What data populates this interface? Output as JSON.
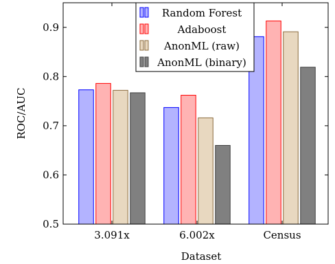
{
  "chart_data": {
    "type": "bar",
    "title": "",
    "xlabel": "Dataset",
    "ylabel": "ROC/AUC",
    "ylim": [
      0.5,
      0.95
    ],
    "yticks": [
      "0.5",
      "0.6",
      "0.7",
      "0.8",
      "0.9"
    ],
    "categories": [
      "3.091x",
      "6.002x",
      "Census"
    ],
    "series": [
      {
        "name": "Random Forest",
        "values": [
          0.773,
          0.737,
          0.881
        ],
        "color": "#b3b3ff",
        "stroke": "#0000ff"
      },
      {
        "name": "Adaboost",
        "values": [
          0.786,
          0.762,
          0.913
        ],
        "color": "#ffb3b3",
        "stroke": "#ff0000"
      },
      {
        "name": "AnonML (raw)",
        "values": [
          0.772,
          0.716,
          0.891
        ],
        "color": "#e8d8c0",
        "stroke": "#8b6b3d"
      },
      {
        "name": "AnonML (binary)",
        "values": [
          0.767,
          0.66,
          0.819
        ],
        "color": "#808080",
        "stroke": "#404040"
      }
    ],
    "legend_position": "top-center",
    "grid": false
  }
}
